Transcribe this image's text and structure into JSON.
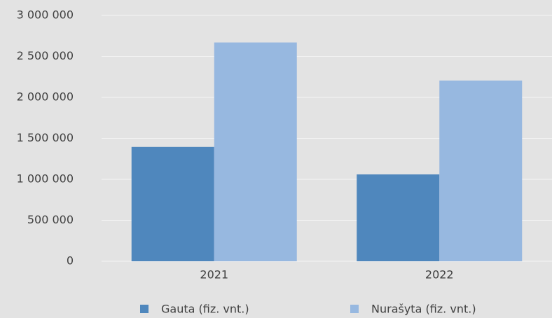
{
  "chart_data": {
    "type": "bar",
    "categories": [
      "2021",
      "2022"
    ],
    "series": [
      {
        "name": "Gauta (fiz. vnt.)",
        "color": "#4f87bd",
        "values": [
          1395000,
          1060000
        ]
      },
      {
        "name": "Nurašyta (fiz. vnt.)",
        "color": "#97b8e0",
        "values": [
          2670000,
          2205000
        ]
      }
    ],
    "ylim": [
      0,
      3000000
    ],
    "yticks": [
      0,
      {
        "value": 500000,
        "label": "500 000"
      },
      {
        "value": 1000000,
        "label": "1 000 000"
      },
      {
        "value": 1500000,
        "label": "1 500 000"
      },
      {
        "value": 2000000,
        "label": "2 000 000"
      },
      {
        "value": 2500000,
        "label": "2 500 000"
      },
      {
        "value": 3000000,
        "label": "3 000 000"
      }
    ],
    "grid": true,
    "legend": "bottom"
  }
}
